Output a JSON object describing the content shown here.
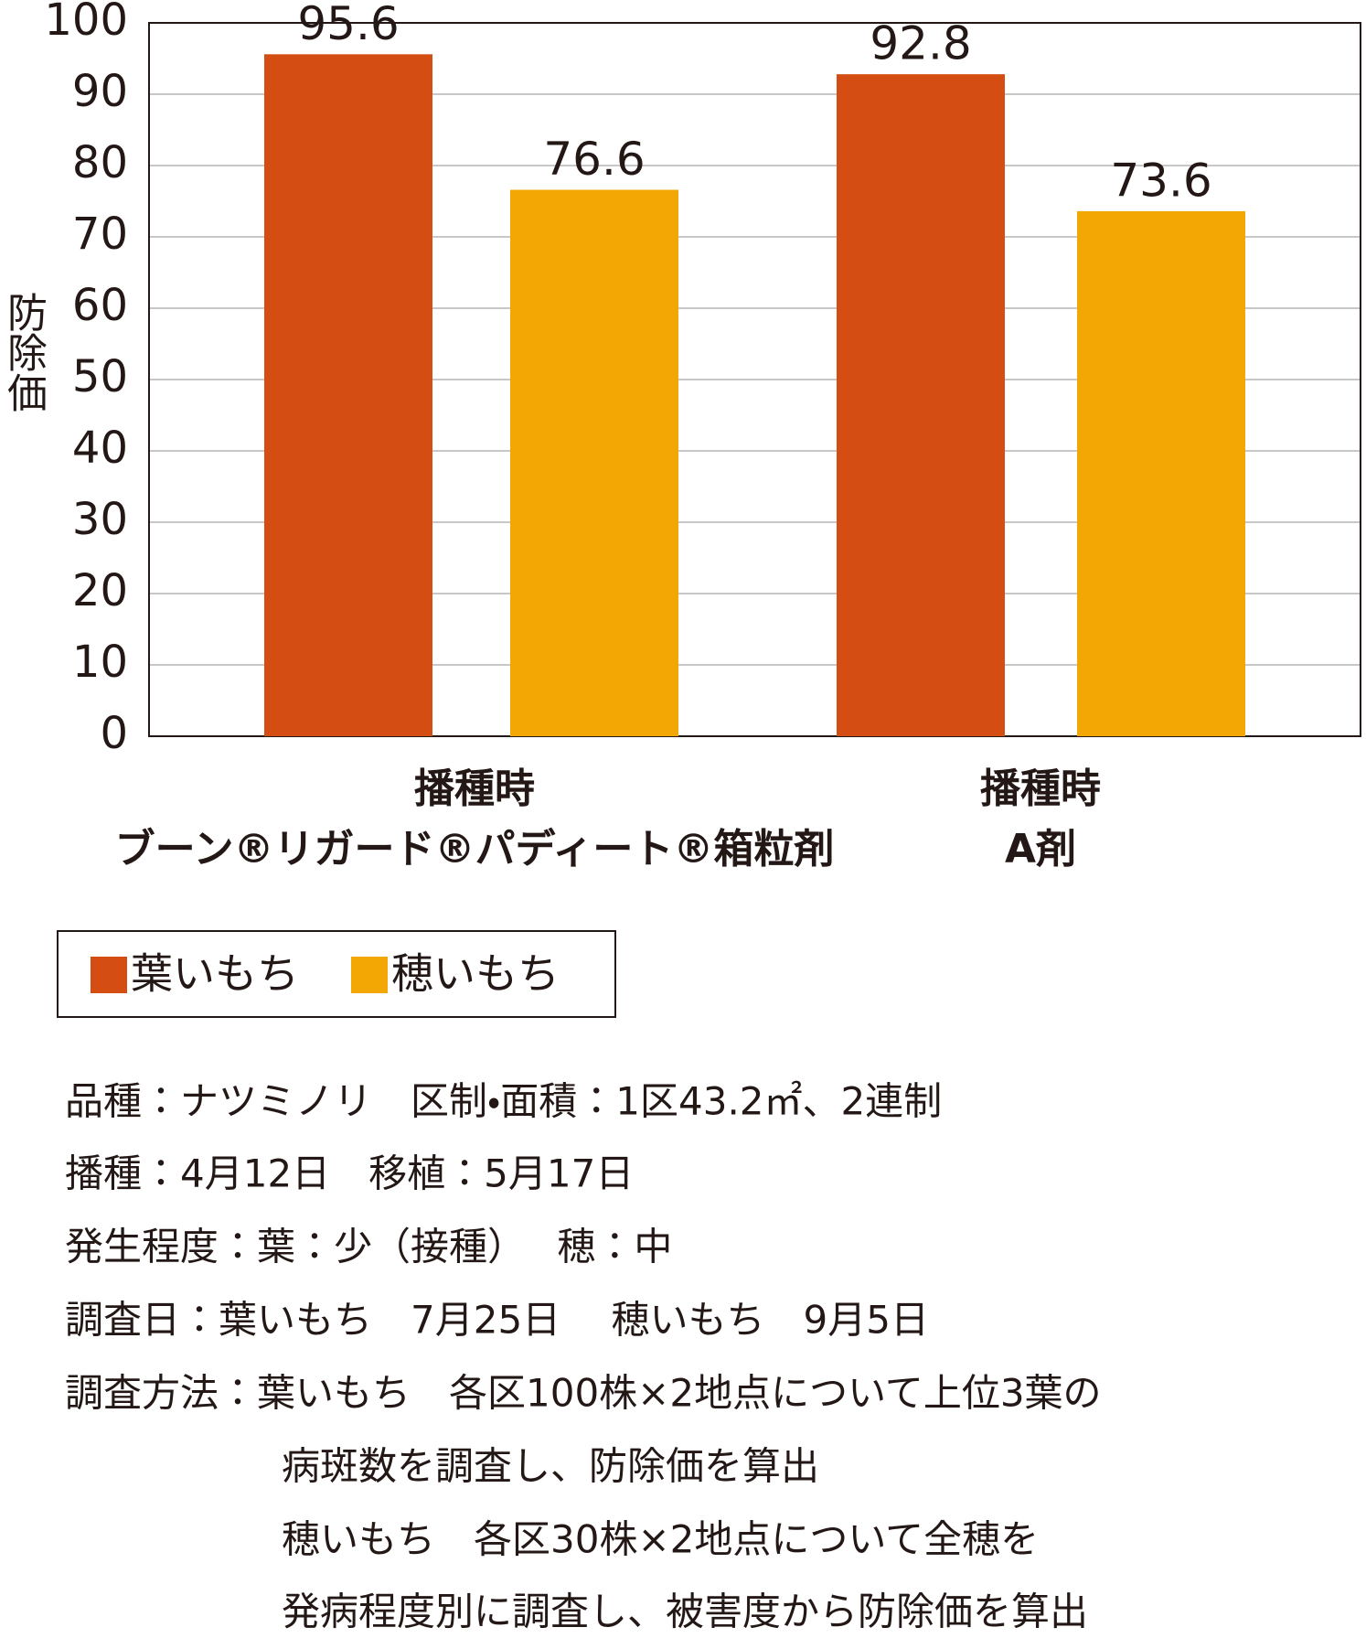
{
  "chart_data": {
    "type": "bar",
    "y_label": "防除価",
    "categories": [
      [
        "播種時",
        "ブーン®リガード®パディート®箱粒剤"
      ],
      [
        "播種時",
        "A剤"
      ]
    ],
    "series": [
      {
        "name": "葉いもち",
        "color": "#d44d12",
        "values": [
          95.6,
          92.8
        ]
      },
      {
        "name": "穂いもち",
        "color": "#f3a704",
        "values": [
          76.6,
          73.6
        ]
      }
    ],
    "ylim": [
      0,
      100
    ],
    "yticks": [
      0,
      10,
      20,
      30,
      40,
      50,
      60,
      70,
      80,
      90,
      100
    ],
    "grid": true
  },
  "notes": [
    "品種：ナツミノリ　区制・面積：1区43.2㎡、2連制",
    "播種：4月12日　移植：5月17日",
    "発生程度：葉：少（接種）　 穂：中",
    "調査日：葉いもち　7月25日　 穂いもち　9月5日",
    "調査方法：葉いもち　各区100株×2地点について上位3葉の",
    "病斑数を調査し、防除価を算出",
    "穂いもち　各区30株×2地点について全穂を",
    "発病程度別に調査し、被害度から防除価を算出"
  ]
}
